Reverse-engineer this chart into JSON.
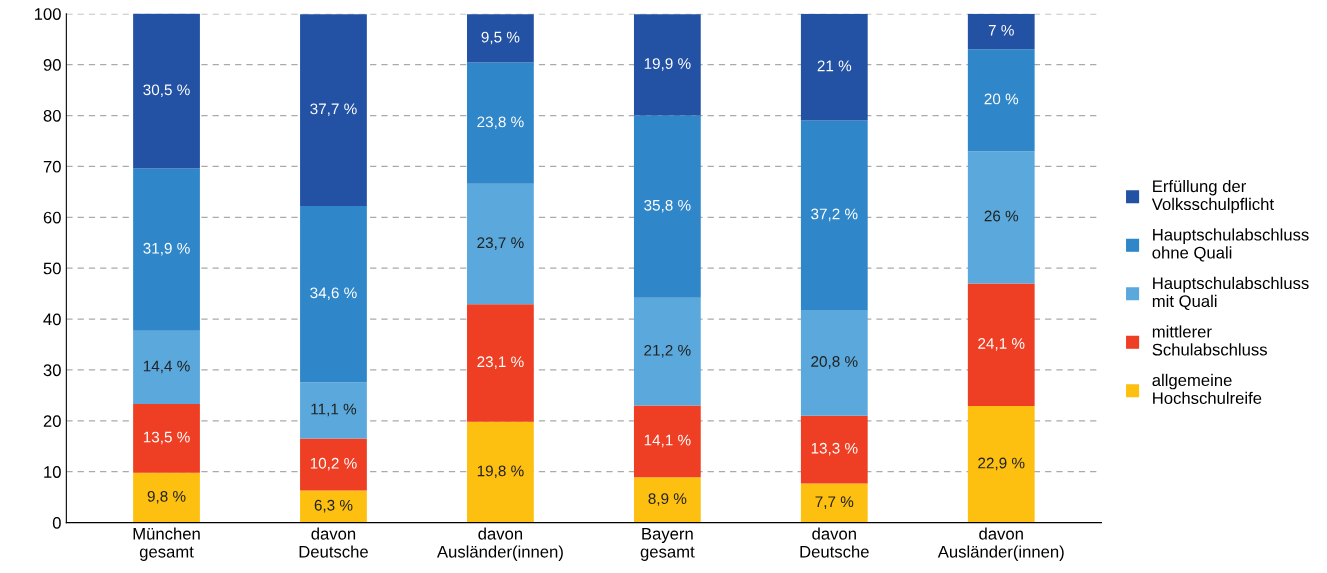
{
  "chart_data": {
    "type": "bar",
    "stacked": true,
    "categories": [
      "München\ngesamt",
      "davon\nDeutsche",
      "davon\nAusländer(innen)",
      "Bayern\ngesamt",
      "davon\nDeutsche",
      "davon\nAusländer(innen)"
    ],
    "series": [
      {
        "name": "allgemeine\nHochschulreife",
        "color": "#fdc010",
        "values": [
          9.8,
          6.3,
          19.8,
          8.9,
          7.7,
          22.9
        ],
        "value_labels": [
          "9,8 %",
          "6,3 %",
          "19,8 %",
          "8,9 %",
          "7,7 %",
          "22,9 %"
        ]
      },
      {
        "name": "mittlerer\nSchulabschluss",
        "color": "#ee3e23",
        "values": [
          13.5,
          10.2,
          23.1,
          14.1,
          13.3,
          24.1
        ],
        "value_labels": [
          "13,5 %",
          "10,2 %",
          "23,1 %",
          "14,1 %",
          "13,3 %",
          "24,1 %"
        ]
      },
      {
        "name": "Hauptschulabschluss\nmit Quali",
        "color": "#5aa8dc",
        "values": [
          14.4,
          11.1,
          23.7,
          21.2,
          20.8,
          26
        ],
        "value_labels": [
          "14,4 %",
          "11,1 %",
          "23,7 %",
          "21,2 %",
          "20,8 %",
          "26 %"
        ]
      },
      {
        "name": "Hauptschulabschluss\nohne Quali",
        "color": "#2f86c8",
        "values": [
          31.9,
          34.6,
          23.8,
          35.8,
          37.2,
          20
        ],
        "value_labels": [
          "31,9 %",
          "34,6 %",
          "23,8 %",
          "35,8 %",
          "37,2 %",
          "20 %"
        ]
      },
      {
        "name": "Erfüllung der\nVolksschulpflicht",
        "color": "#2351a3",
        "values": [
          30.5,
          37.7,
          9.5,
          19.9,
          21,
          7
        ],
        "value_labels": [
          "30,5 %",
          "37,7 %",
          "9,5 %",
          "19,9 %",
          "21 %",
          "7 %"
        ]
      }
    ],
    "ylim": [
      0,
      100
    ],
    "yticks": [
      0,
      10,
      20,
      30,
      40,
      50,
      60,
      70,
      80,
      90,
      100
    ],
    "grid": "y",
    "legend": "right"
  }
}
